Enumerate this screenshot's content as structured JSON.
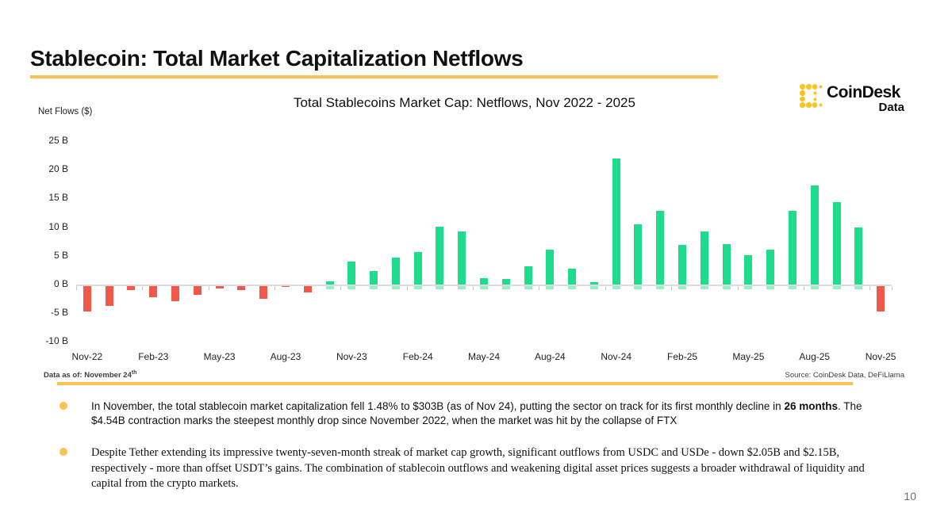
{
  "page": {
    "title": "Stablecoin: Total Market Capitalization Netflows",
    "page_number": "10"
  },
  "logo": {
    "name": "CoinDesk",
    "sub": "Data"
  },
  "chart": {
    "title": "Total Stablecoins Market Cap: Netflows, Nov 2022 - 2025",
    "y_axis_title": "Net Flows ($)",
    "footer_left_prefix": "Data as of: November 24",
    "footer_left_sup": "th",
    "footer_right": "Source: CoinDesk Data, DeFiLlama"
  },
  "chart_data": {
    "type": "bar",
    "title": "Total Stablecoins Market Cap: Netflows, Nov 2022 - 2025",
    "xlabel": "",
    "ylabel": "Net Flows ($)",
    "ylim": [
      -10,
      25
    ],
    "grid": false,
    "legend": "none",
    "y_ticks": [
      25,
      20,
      15,
      10,
      5,
      0,
      -5,
      -10
    ],
    "y_tick_suffix": " B",
    "x_tick_labels": [
      "Nov-22",
      "Feb-23",
      "May-23",
      "Aug-23",
      "Nov-23",
      "Feb-24",
      "May-24",
      "Aug-24",
      "Nov-24",
      "Feb-25",
      "May-25",
      "Aug-25",
      "Nov-25"
    ],
    "categories": [
      "Nov-22",
      "Dec-22",
      "Jan-23",
      "Feb-23",
      "Mar-23",
      "Apr-23",
      "May-23",
      "Jun-23",
      "Jul-23",
      "Aug-23",
      "Sep-23",
      "Oct-23",
      "Nov-23",
      "Dec-23",
      "Jan-24",
      "Feb-24",
      "Mar-24",
      "Apr-24",
      "May-24",
      "Jun-24",
      "Jul-24",
      "Aug-24",
      "Sep-24",
      "Oct-24",
      "Nov-24",
      "Dec-24",
      "Jan-25",
      "Feb-25",
      "Mar-25",
      "Apr-25",
      "May-25",
      "Jun-25",
      "Jul-25",
      "Aug-25",
      "Sep-25",
      "Oct-25",
      "Nov-25"
    ],
    "values": [
      -4.6,
      -3.6,
      -0.8,
      -2.1,
      -2.8,
      -1.6,
      -0.6,
      -0.8,
      -2.3,
      -0.3,
      -1.3,
      0.6,
      4.0,
      2.4,
      4.7,
      5.6,
      10.1,
      9.2,
      1.1,
      0.9,
      3.2,
      6.1,
      2.8,
      0.4,
      21.9,
      10.5,
      12.8,
      6.9,
      9.2,
      7.1,
      5.1,
      6.1,
      12.9,
      17.2,
      14.3,
      10.0,
      -4.5
    ],
    "positive_color": "#1EDC8C",
    "negative_color": "#F0594A"
  },
  "bullets": {
    "0": {
      "text_before": "In November, the total stablecoin market capitalization fell 1.48% to $303B (as of Nov 24), putting the sector on track for its first monthly decline in ",
      "text_bold": "26 months",
      "text_after": ". The $4.54B contraction marks the steepest monthly drop since November 2022, when the market was hit by the collapse of FTX"
    },
    "1": {
      "text": "Despite Tether extending its impressive twenty-seven-month streak of market cap growth, significant outflows from USDC and USDe - down $2.05B and $2.15B, respectively - more than offset USDT’s gains. The combination of stablecoin outflows and weakening digital asset prices suggests a broader withdrawal of liquidity and capital from the crypto markets."
    }
  }
}
